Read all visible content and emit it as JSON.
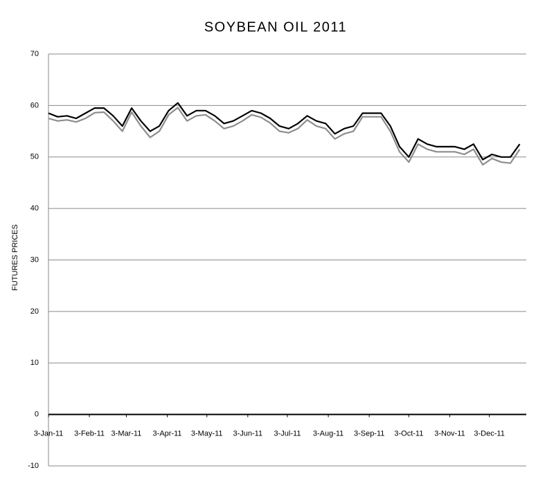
{
  "chart_data": {
    "type": "line",
    "title": "SOYBEAN OIL 2011",
    "y_label": "FUTURES PRICES",
    "x": [
      "2011-01-03",
      "2011-01-10",
      "2011-01-17",
      "2011-01-24",
      "2011-01-31",
      "2011-02-07",
      "2011-02-14",
      "2011-02-21",
      "2011-02-28",
      "2011-03-07",
      "2011-03-14",
      "2011-03-21",
      "2011-03-28",
      "2011-04-04",
      "2011-04-11",
      "2011-04-18",
      "2011-04-25",
      "2011-05-02",
      "2011-05-09",
      "2011-05-16",
      "2011-05-23",
      "2011-05-30",
      "2011-06-06",
      "2011-06-13",
      "2011-06-20",
      "2011-06-27",
      "2011-07-04",
      "2011-07-11",
      "2011-07-18",
      "2011-07-25",
      "2011-08-01",
      "2011-08-08",
      "2011-08-15",
      "2011-08-22",
      "2011-08-29",
      "2011-09-05",
      "2011-09-12",
      "2011-09-19",
      "2011-09-26",
      "2011-10-03",
      "2011-10-10",
      "2011-10-17",
      "2011-10-24",
      "2011-10-31",
      "2011-11-07",
      "2011-11-14",
      "2011-11-21",
      "2011-11-28",
      "2011-12-05",
      "2011-12-12",
      "2011-12-19",
      "2011-12-26"
    ],
    "series": [
      {
        "color": "#8c8c8c",
        "values": [
          57.5,
          57,
          57.2,
          56.8,
          57.5,
          58.6,
          58.7,
          57,
          55,
          58.7,
          56,
          53.8,
          55,
          58.2,
          59.6,
          57,
          58,
          58.2,
          57,
          55.5,
          56,
          57,
          58.2,
          57.7,
          56.6,
          55,
          54.7,
          55.5,
          57.2,
          56,
          55.5,
          53.5,
          54.5,
          55,
          57.8,
          57.8,
          57.8,
          55,
          51,
          49,
          52.5,
          51.5,
          51,
          51,
          51,
          50.5,
          51.5,
          48.5,
          49.7,
          49,
          48.8,
          51.5
        ]
      },
      {
        "color": "#000000",
        "values": [
          58.5,
          57.8,
          58,
          57.5,
          58.5,
          59.5,
          59.5,
          58,
          56,
          59.5,
          57,
          55,
          56,
          59,
          60.5,
          58,
          59,
          59,
          58,
          56.5,
          57,
          58,
          59,
          58.5,
          57.5,
          56,
          55.5,
          56.5,
          58,
          57,
          56.5,
          54.5,
          55.5,
          56,
          58.5,
          58.5,
          58.5,
          56,
          52,
          50,
          53.5,
          52.5,
          52,
          52,
          52,
          51.5,
          52.5,
          49.5,
          50.5,
          50,
          50,
          52.5
        ]
      }
    ],
    "xlim": [
      "2011-01-03",
      "2011-12-31"
    ],
    "xticks": [
      {
        "value": "2011-01-03",
        "label": "3-Jan-11"
      },
      {
        "value": "2011-02-03",
        "label": "3-Feb-11"
      },
      {
        "value": "2011-03-03",
        "label": "3-Mar-11"
      },
      {
        "value": "2011-04-03",
        "label": "3-Apr-11"
      },
      {
        "value": "2011-05-03",
        "label": "3-May-11"
      },
      {
        "value": "2011-06-03",
        "label": "3-Jun-11"
      },
      {
        "value": "2011-07-03",
        "label": "3-Jul-11"
      },
      {
        "value": "2011-08-03",
        "label": "3-Aug-11"
      },
      {
        "value": "2011-09-03",
        "label": "3-Sep-11"
      },
      {
        "value": "2011-10-03",
        "label": "3-Oct-11"
      },
      {
        "value": "2011-11-03",
        "label": "3-Nov-11"
      },
      {
        "value": "2011-12-03",
        "label": "3-Dec-11"
      }
    ],
    "ylim": [
      -10,
      70
    ],
    "yticks": [
      -10,
      0,
      10,
      20,
      30,
      40,
      50,
      60,
      70
    ],
    "grid": true
  }
}
